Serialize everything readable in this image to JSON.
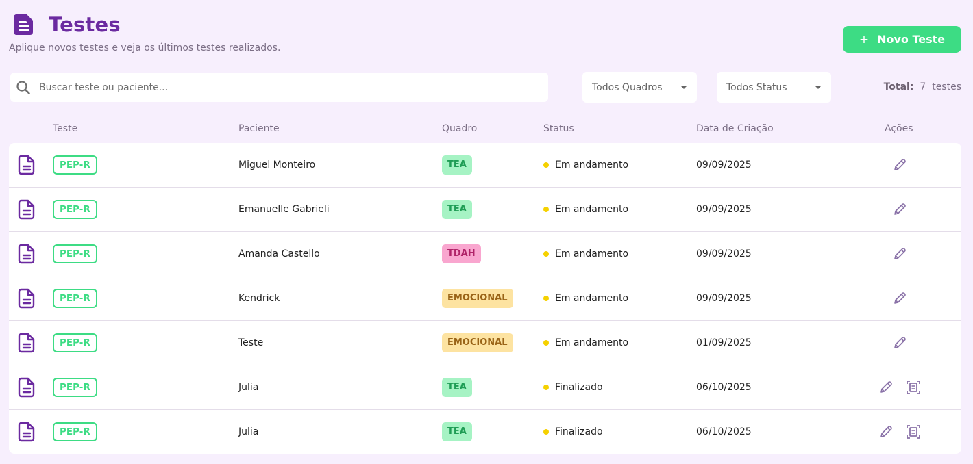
{
  "header": {
    "title": "Testes",
    "subtitle": "Aplique novos testes e veja os últimos testes realizados.",
    "icon": "document-icon"
  },
  "new_button": {
    "plus": "+",
    "label": "Novo Teste"
  },
  "filters": {
    "search_placeholder": "Buscar teste ou paciente...",
    "quadro_select": "Todos Quadros",
    "status_select": "Todos Status",
    "total_label": "Total:",
    "total_value": "7",
    "total_unit": "testes"
  },
  "columns": {
    "teste": "Teste",
    "paciente": "Paciente",
    "quadro": "Quadro",
    "status": "Status",
    "data": "Data de Criação",
    "acoes": "Ações"
  },
  "colors": {
    "accent_purple": "#6b2aa0",
    "green": "#3ddc84",
    "status_dot": "#f5d100",
    "tea_bg": "#a6f3c4",
    "tea_fg": "#1f9d55",
    "tdah_bg": "#f9a6cf",
    "tdah_fg": "#b02368",
    "emocional_bg": "#fde3a1",
    "emocional_fg": "#9a6417"
  },
  "rows": [
    {
      "test": "PEP-R",
      "patient": "Miguel Monteiro",
      "quadro": "TEA",
      "status": "Em andamento",
      "date": "09/09/2025",
      "actions": [
        "edit"
      ]
    },
    {
      "test": "PEP-R",
      "patient": "Emanuelle Gabrieli",
      "quadro": "TEA",
      "status": "Em andamento",
      "date": "09/09/2025",
      "actions": [
        "edit"
      ]
    },
    {
      "test": "PEP-R",
      "patient": "Amanda Castello",
      "quadro": "TDAH",
      "status": "Em andamento",
      "date": "09/09/2025",
      "actions": [
        "edit"
      ]
    },
    {
      "test": "PEP-R",
      "patient": "Kendrick",
      "quadro": "EMOCIONAL",
      "status": "Em andamento",
      "date": "09/09/2025",
      "actions": [
        "edit"
      ]
    },
    {
      "test": "PEP-R",
      "patient": "Teste",
      "quadro": "EMOCIONAL",
      "status": "Em andamento",
      "date": "01/09/2025",
      "actions": [
        "edit"
      ]
    },
    {
      "test": "PEP-R",
      "patient": "Julia",
      "quadro": "TEA",
      "status": "Finalizado",
      "date": "06/10/2025",
      "actions": [
        "edit",
        "report"
      ]
    },
    {
      "test": "PEP-R",
      "patient": "Julia",
      "quadro": "TEA",
      "status": "Finalizado",
      "date": "06/10/2025",
      "actions": [
        "edit",
        "report"
      ]
    }
  ]
}
